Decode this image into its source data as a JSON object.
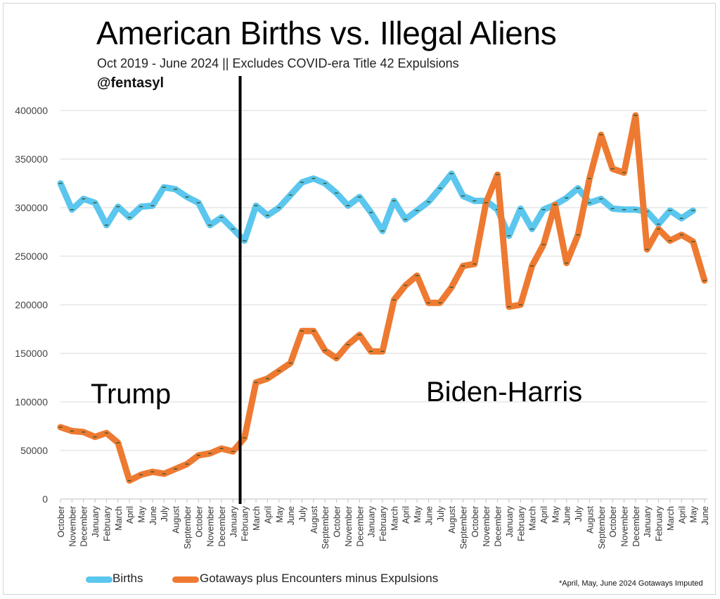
{
  "title": "American Births vs. Illegal Aliens",
  "subtitle": "Oct 2019 - June 2024 || Excludes COVID-era Title 42 Expulsions",
  "handle": "@fentasyl",
  "footnote": "*April, May, June 2024 Gotaways Imputed",
  "colors": {
    "births": "#5bc6ee",
    "migrants": "#ee7a32",
    "divider": "#000000",
    "grid": "#d9d9d9"
  },
  "chart_data": {
    "type": "line",
    "ylim": [
      0,
      400000
    ],
    "yticks": [
      "0",
      "50000",
      "100000",
      "150000",
      "200000",
      "250000",
      "300000",
      "350000",
      "400000"
    ],
    "grid": true,
    "legend": "bottom",
    "x": [
      "October",
      "November",
      "December",
      "January",
      "February",
      "March",
      "April",
      "May",
      "June",
      "July",
      "August",
      "September",
      "October",
      "November",
      "December",
      "January",
      "February",
      "March",
      "April",
      "May",
      "June",
      "July",
      "August",
      "September",
      "October",
      "November",
      "December",
      "January",
      "February",
      "March",
      "April",
      "May",
      "June",
      "July",
      "August",
      "September",
      "October",
      "November",
      "December",
      "January",
      "February",
      "March",
      "April",
      "May",
      "June",
      "July",
      "August",
      "September",
      "October",
      "November",
      "December",
      "January",
      "February",
      "March",
      "April",
      "May",
      "June"
    ],
    "series": [
      {
        "name": "Births",
        "values": [
          325000,
          298000,
          309000,
          305000,
          282000,
          301000,
          290000,
          301000,
          302000,
          321000,
          319000,
          311000,
          305000,
          282000,
          290000,
          278000,
          266000,
          302000,
          292000,
          300000,
          313000,
          326000,
          330000,
          325000,
          315000,
          302000,
          311000,
          295000,
          276000,
          307000,
          288000,
          297000,
          306000,
          320000,
          335000,
          312000,
          307000,
          307000,
          298000,
          271000,
          299000,
          278000,
          298000,
          303000,
          310000,
          320000,
          305000,
          309000,
          299000,
          298000,
          298000,
          296000,
          283000,
          297000,
          289000,
          297000,
          null
        ]
      },
      {
        "name": "Gotaways plus Encounters minus Expulsions",
        "values": [
          74000,
          70000,
          69000,
          64000,
          68000,
          58000,
          19000,
          25000,
          28000,
          26000,
          31000,
          36000,
          45000,
          47000,
          52000,
          49000,
          63000,
          120000,
          124000,
          132000,
          140000,
          173000,
          173000,
          153000,
          145000,
          159000,
          169000,
          152000,
          152000,
          205000,
          220000,
          230000,
          202000,
          202000,
          218000,
          240000,
          242000,
          305000,
          334000,
          198000,
          200000,
          240000,
          262000,
          303000,
          243000,
          272000,
          330000,
          375000,
          340000,
          336000,
          395000,
          257000,
          278000,
          266000,
          272000,
          265000,
          225000
        ]
      }
    ],
    "divider_after": "January",
    "annotations": [
      {
        "text": "Trump"
      },
      {
        "text": "Biden-Harris"
      }
    ]
  }
}
